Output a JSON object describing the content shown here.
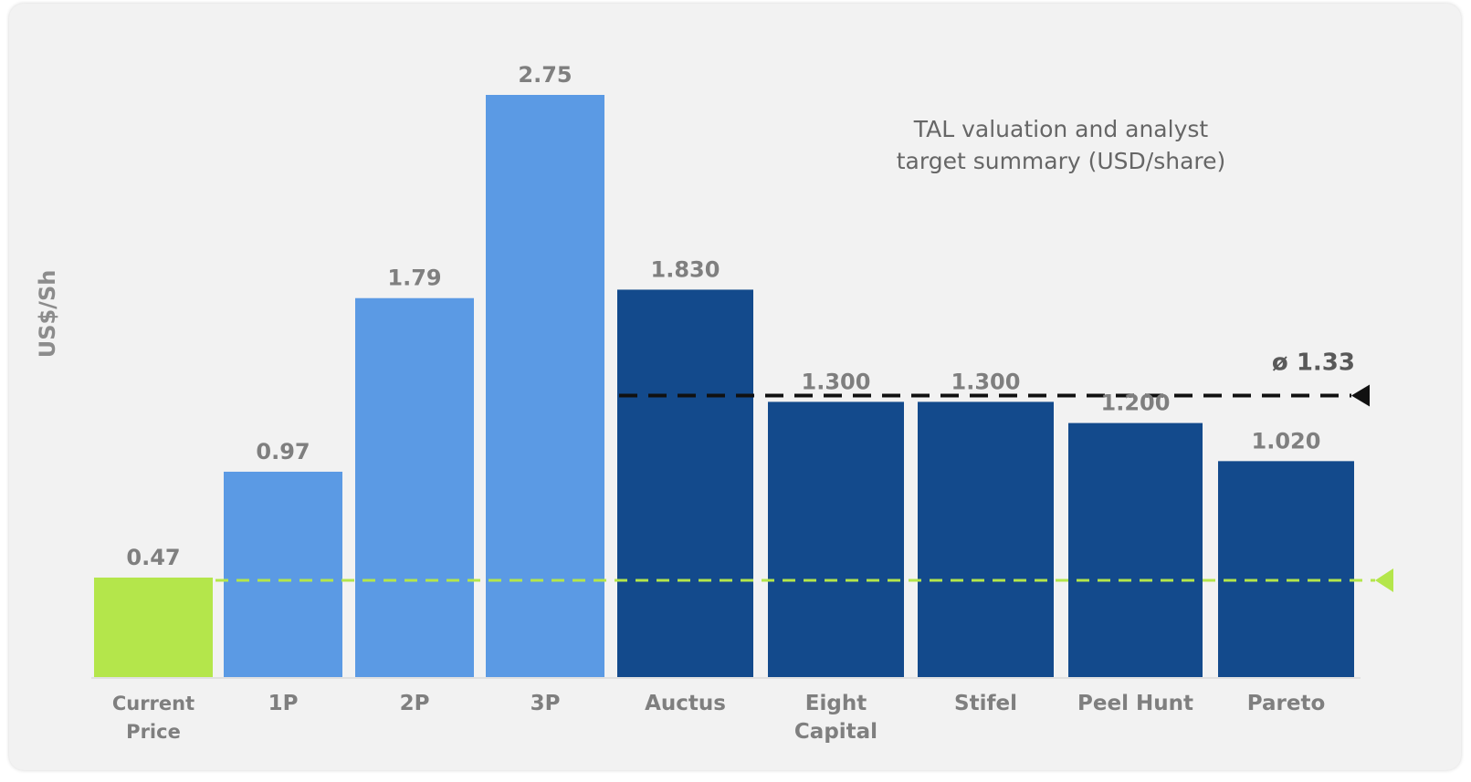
{
  "chart_data": {
    "type": "bar",
    "title_lines": [
      "TAL valuation and analyst",
      "target summary (USD/share)"
    ],
    "ylabel": "US$/Sh",
    "xlabel": "",
    "ylim": [
      0,
      2.75
    ],
    "grid": false,
    "categories": [
      [
        "Current",
        "Price"
      ],
      [
        "1P"
      ],
      [
        "2P"
      ],
      [
        "3P"
      ],
      [
        "Auctus"
      ],
      [
        "Eight",
        "Capital"
      ],
      [
        "Stifel"
      ],
      [
        "Peel Hunt"
      ],
      [
        "Pareto"
      ]
    ],
    "values": [
      0.47,
      0.97,
      1.79,
      2.75,
      1.83,
      1.3,
      1.3,
      1.2,
      1.02
    ],
    "value_labels": [
      "0.47",
      "0.97",
      "1.79",
      "2.75",
      "1.830",
      "1.300",
      "1.300",
      "1.200",
      "1.020"
    ],
    "bar_groups": [
      "current",
      "valuation",
      "valuation",
      "valuation",
      "analyst",
      "analyst",
      "analyst",
      "analyst",
      "analyst"
    ],
    "colors": {
      "current": "#b4e64b",
      "valuation": "#5b9ae4",
      "analyst": "#134a8c",
      "average_line": "#111111",
      "current_line": "#b4e64b"
    },
    "reference_lines": [
      {
        "id": "average",
        "value": 1.33,
        "label": "ø 1.33"
      },
      {
        "id": "current",
        "value": 0.47,
        "label": ""
      }
    ]
  }
}
